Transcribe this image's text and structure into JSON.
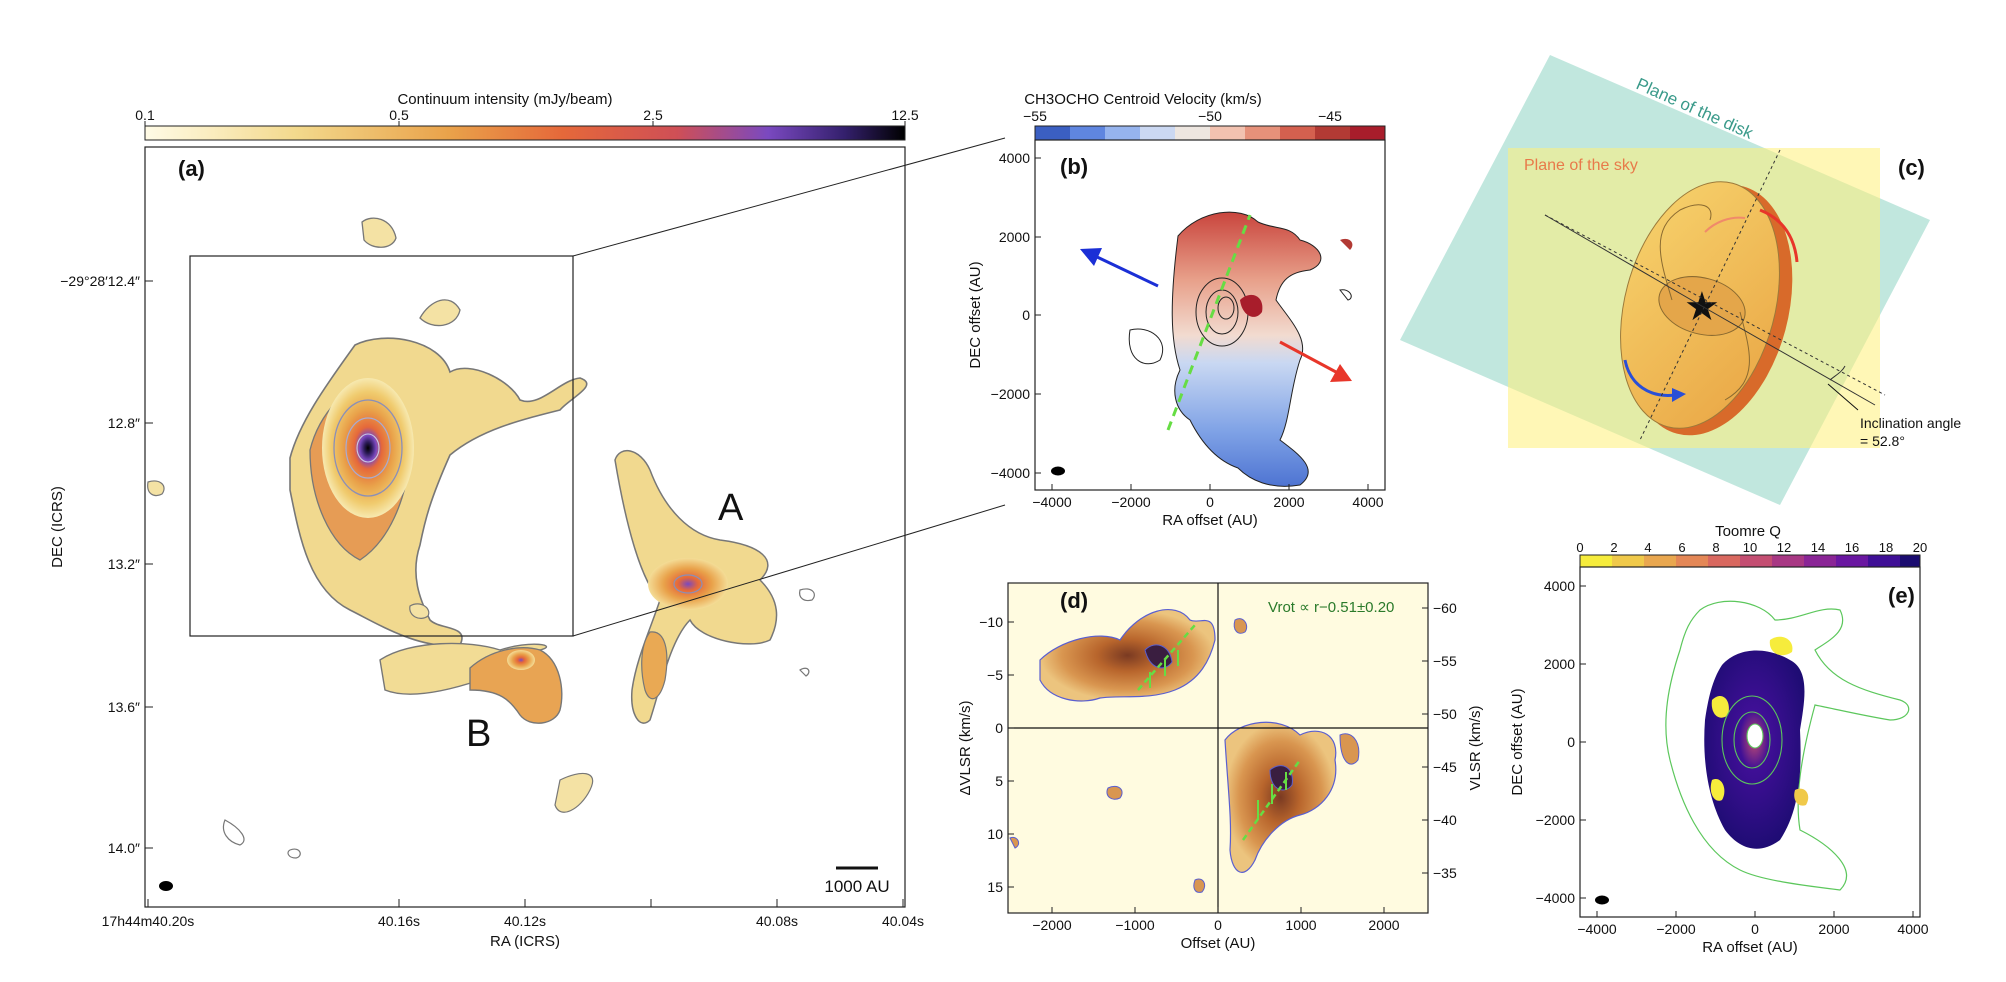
{
  "panels": {
    "a": {
      "label": "(a)",
      "colorbar_title": "Continuum intensity (mJy/beam)",
      "colorbar_ticks": [
        "0.1",
        "0.5",
        "2.5",
        "12.5"
      ],
      "colorbar_colors": [
        "#fffbe6",
        "#f3d98c",
        "#e9a24a",
        "#e5683a",
        "#cf4f56",
        "#7a49c0",
        "#34206d",
        "#000000"
      ],
      "source_labels": [
        "A",
        "B"
      ],
      "x_ticks": [
        "17h44m40.20s",
        "40.16s",
        "40.12s",
        "40.08s",
        "40.04s"
      ],
      "y_ticks": [
        "−29°28′12.4″",
        "12.8″",
        "13.2″",
        "13.6″",
        "14.0″"
      ],
      "xlabel": "RA (ICRS)",
      "ylabel": "DEC (ICRS)",
      "scalebar": "1000 AU"
    },
    "b": {
      "label": "(b)",
      "colorbar_title": "CH3OCHO Centroid Velocity (km/s)",
      "colorbar_ticks": [
        "−55",
        "−50",
        "−45"
      ],
      "colorbar_colors": [
        "#3b5fc2",
        "#5f86e0",
        "#96b4ee",
        "#cbd8f2",
        "#ede6e0",
        "#f2c2b0",
        "#e6917a",
        "#d4604f",
        "#b23a34",
        "#a81d2b"
      ],
      "x_ticks": [
        "−4000",
        "−2000",
        "0",
        "2000",
        "4000"
      ],
      "y_ticks": [
        "4000",
        "2000",
        "0",
        "−2000",
        "−4000"
      ],
      "xlabel": "RA offset (AU)",
      "ylabel": "DEC offset (AU)"
    },
    "c": {
      "label": "(c)",
      "plane_disk": "Plane of the disk",
      "plane_sky": "Plane of the sky",
      "incl_line1": "Inclination angle",
      "incl_line2": "= 52.8°"
    },
    "d": {
      "label": "(d)",
      "formula": "Vrot ∝ r−0.51±0.20",
      "x_ticks": [
        "−2000",
        "−1000",
        "0",
        "1000",
        "2000"
      ],
      "y_ticks_left": [
        "−10",
        "−5",
        "0",
        "5",
        "10",
        "15"
      ],
      "y_ticks_right": [
        "−60",
        "−55",
        "−50",
        "−45",
        "−40",
        "−35"
      ],
      "xlabel": "Offset (AU)",
      "ylabel_left": "ΔVLSR (km/s)",
      "ylabel_right": "VLSR (km/s)"
    },
    "e": {
      "label": "(e)",
      "colorbar_title": "Toomre Q",
      "colorbar_ticks": [
        "0",
        "2",
        "4",
        "6",
        "8",
        "10",
        "12",
        "14",
        "16",
        "18",
        "20"
      ],
      "colorbar_colors": [
        "#f6ec3c",
        "#f0c94a",
        "#e9a74f",
        "#e48756",
        "#d9685f",
        "#c44e72",
        "#a83884",
        "#8a2596",
        "#6a17a1",
        "#3f0f96",
        "#1b0c70"
      ],
      "x_ticks": [
        "−4000",
        "−2000",
        "0",
        "2000",
        "4000"
      ],
      "y_ticks": [
        "4000",
        "2000",
        "0",
        "−2000",
        "−4000"
      ],
      "xlabel": "RA offset (AU)",
      "ylabel": "DEC offset (AU)"
    }
  },
  "chart_data": [
    {
      "type": "heatmap",
      "panel": "a",
      "colorbar_ticks": [
        0.1,
        0.5,
        2.5,
        12.5
      ],
      "colorbar_scale": "log",
      "xlim_ra_seconds": [
        40.2,
        40.04
      ],
      "ylim_dec_arcsec": [
        12.0,
        14.2
      ],
      "sources": [
        "A",
        "B"
      ]
    },
    {
      "type": "heatmap",
      "panel": "b",
      "xlim": [
        -4500,
        4500
      ],
      "ylim": [
        -4500,
        4500
      ],
      "colorbar_range": [
        -55,
        -43
      ]
    },
    {
      "type": "heatmap",
      "panel": "d",
      "xlim": [
        -2500,
        2500
      ],
      "ylim_dv": [
        16.5,
        -13.5
      ],
      "ylim_vlsr": [
        -63.5,
        -33.5
      ]
    },
    {
      "type": "heatmap",
      "panel": "e",
      "xlim": [
        -4500,
        4500
      ],
      "ylim": [
        -4500,
        4500
      ],
      "colorbar_range": [
        0,
        20
      ]
    }
  ]
}
